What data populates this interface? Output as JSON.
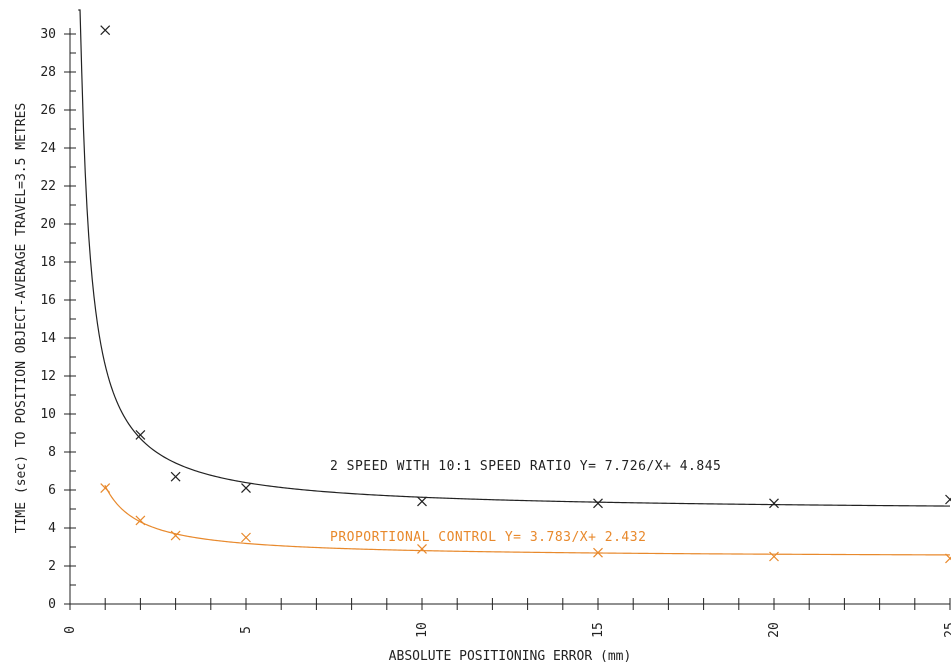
{
  "chart_data": {
    "type": "scatter",
    "xlabel": "ABSOLUTE POSITIONING ERROR (mm)",
    "ylabel": "TIME (sec) TO POSITION OBJECT-AVERAGE TRAVEL=3.5 METRES",
    "xlim": [
      0,
      25
    ],
    "ylim": [
      0,
      30
    ],
    "x_ticks": [
      "0",
      "5",
      "10",
      "15",
      "20",
      "25"
    ],
    "y_ticks": [
      "0",
      "2",
      "4",
      "6",
      "8",
      "10",
      "12",
      "14",
      "16",
      "18",
      "20",
      "22",
      "24",
      "26",
      "28",
      "30"
    ],
    "grid": false,
    "series": [
      {
        "name": "2 SPEED WITH 10:1 SPEED RATIO",
        "equation": "Y= 7.726/X+ 4.845",
        "color": "#222222",
        "fit": {
          "a": 7.726,
          "b": 4.845
        },
        "points": [
          {
            "x": 1,
            "y": 30.2
          },
          {
            "x": 2,
            "y": 8.9
          },
          {
            "x": 3,
            "y": 6.7
          },
          {
            "x": 5,
            "y": 6.1
          },
          {
            "x": 10,
            "y": 5.4
          },
          {
            "x": 15,
            "y": 5.3
          },
          {
            "x": 20,
            "y": 5.3
          },
          {
            "x": 25,
            "y": 5.5
          }
        ]
      },
      {
        "name": "PROPORTIONAL CONTROL",
        "equation": "Y= 3.783/X+ 2.432",
        "color": "#e8892c",
        "fit": {
          "a": 3.783,
          "b": 2.432
        },
        "points": [
          {
            "x": 1,
            "y": 6.1
          },
          {
            "x": 2,
            "y": 4.4
          },
          {
            "x": 3,
            "y": 3.6
          },
          {
            "x": 5,
            "y": 3.5
          },
          {
            "x": 10,
            "y": 2.9
          },
          {
            "x": 15,
            "y": 2.7
          },
          {
            "x": 20,
            "y": 2.5
          },
          {
            "x": 25,
            "y": 2.4
          }
        ]
      }
    ]
  }
}
